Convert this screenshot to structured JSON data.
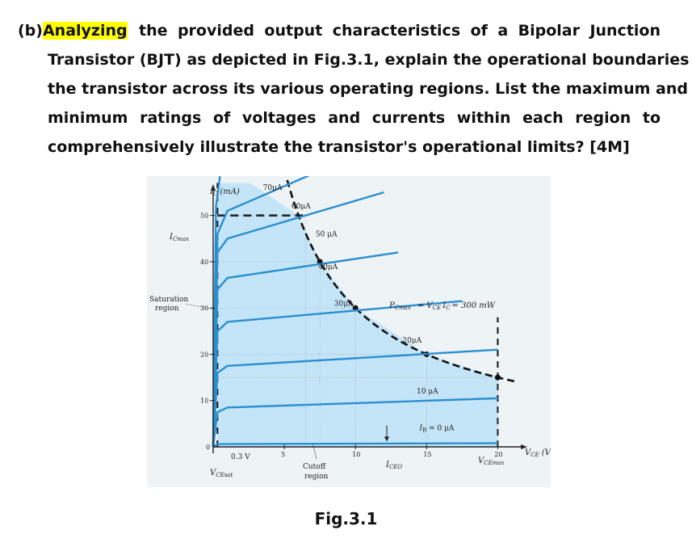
{
  "question": {
    "label": "(b)",
    "highlight": "Analyzing",
    "line1_rest": "the provided output characteristics of a Bipolar Junction",
    "line2": "Transistor (BJT) as depicted in Fig.3.1, explain the operational boundaries of",
    "line3": "the transistor across its various operating regions. List the maximum and",
    "line4": "minimum ratings of voltages and currents within each region to",
    "line5": "comprehensively illustrate the transistor's operational limits? [4M]"
  },
  "figure": {
    "caption": "Fig.3.1",
    "y_axis_label": "I",
    "y_axis_label_sub": "C",
    "y_axis_unit": "(mA)",
    "x_axis_label": "V",
    "x_axis_label_sub": "CE",
    "x_axis_unit": "(V)",
    "icmax_label": "I",
    "icmax_sub": "Cmax",
    "saturation_label_1": "Saturation",
    "saturation_label_2": "region",
    "cutoff_label_1": "Cutoff",
    "cutoff_label_2": "region",
    "vce_sat_label": "V",
    "vce_sat_sub": "CEsat",
    "vsat_value": "0.3 V",
    "iceo_label": "I",
    "iceo_sub": "CEO",
    "vcemax_label": "V",
    "vcemax_sub": "CEmax",
    "power_label": "P",
    "power_sub": "Cmax",
    "power_eq": "= V",
    "power_eq_sub": "CE",
    "power_eq2": "I",
    "power_eq2_sub": "C",
    "power_value": "= 300 mW",
    "colors": {
      "curve": "#2a8fd0",
      "shade": "#bfe3f7",
      "dashed": "#111111",
      "axis": "#222222"
    },
    "chart_data": {
      "type": "line",
      "xlim": [
        0,
        21
      ],
      "ylim": [
        0,
        55
      ],
      "x_ticks": [
        "5",
        "10",
        "15",
        "20"
      ],
      "y_ticks": [
        "10",
        "20",
        "30",
        "40",
        "50"
      ],
      "series": [
        {
          "name": "I_B = 0 μA",
          "label": "I",
          "label_sub": "B",
          "label_rest": " = 0 μA",
          "points": [
            [
              0,
              0
            ],
            [
              0.3,
              0.6
            ],
            [
              20,
              0.8
            ]
          ]
        },
        {
          "name": "10 μA",
          "label": "10 μA",
          "points": [
            [
              0,
              0
            ],
            [
              0.3,
              7.5
            ],
            [
              1,
              8.5
            ],
            [
              20,
              10.5
            ]
          ]
        },
        {
          "name": "20μA",
          "label": "20μA",
          "points": [
            [
              0,
              0
            ],
            [
              0.3,
              16
            ],
            [
              1,
              17.5
            ],
            [
              20,
              21
            ]
          ]
        },
        {
          "name": "30μA",
          "label": "30μA",
          "points": [
            [
              0,
              0
            ],
            [
              0.3,
              25
            ],
            [
              1,
              27
            ],
            [
              17.5,
              31.5
            ]
          ]
        },
        {
          "name": "40μA",
          "label": "40μA",
          "points": [
            [
              0,
              0
            ],
            [
              0.3,
              34
            ],
            [
              1,
              36.5
            ],
            [
              13,
              42
            ]
          ]
        },
        {
          "name": "50 μA",
          "label": "50 μA",
          "points": [
            [
              0,
              0
            ],
            [
              0.3,
              42
            ],
            [
              1,
              45
            ],
            [
              12,
              55
            ]
          ]
        },
        {
          "name": "60μA",
          "label": "60μA",
          "points": [
            [
              0,
              0
            ],
            [
              0.3,
              46
            ],
            [
              1,
              51
            ],
            [
              7,
              59
            ]
          ]
        },
        {
          "name": "70μA",
          "label": "70μA",
          "points": [
            [
              0,
              0
            ],
            [
              0.2,
              52
            ],
            [
              0.5,
              59
            ]
          ]
        }
      ],
      "max_current_ma": 50,
      "max_voltage_v": 20,
      "vce_sat_v": 0.3,
      "max_power_mw": 300,
      "power_curve_points": [
        [
          6,
          50
        ],
        [
          7.5,
          40
        ],
        [
          10,
          30
        ],
        [
          15,
          20
        ],
        [
          20,
          15
        ]
      ]
    }
  }
}
